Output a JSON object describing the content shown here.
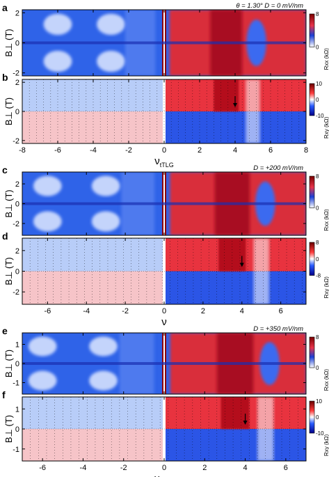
{
  "chart_data": [
    {
      "type": "heatmap",
      "panel": "a",
      "xlim": [
        -8,
        8
      ],
      "ylim": [
        -2.2,
        2.2
      ],
      "yticks": [
        -2,
        0,
        2
      ],
      "xticks": [],
      "ylabel": "B⊥ (T)",
      "annotation": "θ = 1.30°   D = 0 mV/nm",
      "colorbar": {
        "label": "Rxx (kΩ)",
        "ticks": [
          "8",
          "0"
        ],
        "scheme": "white-blue-red"
      }
    },
    {
      "type": "heatmap",
      "panel": "b",
      "xlim": [
        -8,
        8
      ],
      "ylim": [
        -2.2,
        2.2
      ],
      "yticks": [
        -2,
        0,
        2
      ],
      "xticks": [
        -8,
        -6,
        -4,
        -2,
        0,
        2,
        4,
        6,
        8
      ],
      "xlabel": "νtTLG",
      "ylabel": "B⊥ (T)",
      "arrow_at": 4,
      "colorbar": {
        "label": "Rxy (kΩ)",
        "ticks": [
          "10",
          "0",
          "-10"
        ],
        "scheme": "blue-white-red"
      }
    },
    {
      "type": "heatmap",
      "panel": "c",
      "xlim": [
        -7.3,
        7.3
      ],
      "ylim": [
        -3.2,
        3.2
      ],
      "yticks": [
        -2,
        0,
        2
      ],
      "xticks": [],
      "ylabel": "B⊥ (T)",
      "annotation": "D = +200 mV/nm",
      "colorbar": {
        "label": "Rxx (kΩ)",
        "ticks": [
          "8",
          "0"
        ],
        "scheme": "white-blue-red"
      }
    },
    {
      "type": "heatmap",
      "panel": "d",
      "xlim": [
        -7.3,
        7.3
      ],
      "ylim": [
        -3.2,
        3.2
      ],
      "yticks": [
        -2,
        0,
        2
      ],
      "xticks": [
        -6,
        -4,
        -2,
        0,
        2,
        4,
        6
      ],
      "xlabel": "ν",
      "ylabel": "B⊥ (T)",
      "arrow_at": 4,
      "colorbar": {
        "label": "Rxy (kΩ)",
        "ticks": [
          "8",
          "0",
          "-8"
        ],
        "scheme": "blue-white-red"
      }
    },
    {
      "type": "heatmap",
      "panel": "e",
      "xlim": [
        -7,
        7
      ],
      "ylim": [
        -1.6,
        1.6
      ],
      "yticks": [
        -1,
        0,
        1
      ],
      "xticks": [],
      "ylabel": "B⊥ (T)",
      "annotation": "D = +350 mV/nm",
      "colorbar": {
        "label": "Rxx (kΩ)",
        "ticks": [
          "8",
          "0"
        ],
        "scheme": "white-blue-red"
      }
    },
    {
      "type": "heatmap",
      "panel": "f",
      "xlim": [
        -7,
        7
      ],
      "ylim": [
        -1.6,
        1.6
      ],
      "yticks": [
        -1,
        0,
        1
      ],
      "xticks": [
        -6,
        -4,
        -2,
        0,
        2,
        4,
        6
      ],
      "xlabel": "νtTLG",
      "ylabel": "B⊥ (T)",
      "arrow_at": 4,
      "colorbar": {
        "label": "Rxy (kΩ)",
        "ticks": [
          "10",
          "0",
          "-10"
        ],
        "scheme": "blue-white-red"
      }
    }
  ]
}
